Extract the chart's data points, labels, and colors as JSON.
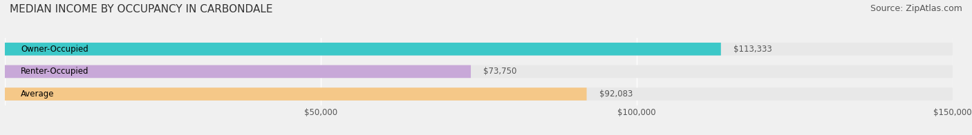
{
  "title": "MEDIAN INCOME BY OCCUPANCY IN CARBONDALE",
  "source": "Source: ZipAtlas.com",
  "categories": [
    "Owner-Occupied",
    "Renter-Occupied",
    "Average"
  ],
  "values": [
    113333,
    73750,
    92083
  ],
  "bar_colors": [
    "#3cc8c8",
    "#c8a8d8",
    "#f5c888"
  ],
  "bar_labels": [
    "$113,333",
    "$73,750",
    "$92,083"
  ],
  "xlim": [
    0,
    150000
  ],
  "xticks": [
    0,
    50000,
    100000,
    150000
  ],
  "xtick_labels": [
    "$50,000",
    "$100,000",
    "$150,000"
  ],
  "background_color": "#f0f0f0",
  "bar_bg_color": "#e8e8e8",
  "title_fontsize": 11,
  "source_fontsize": 9,
  "label_fontsize": 8.5,
  "bar_height": 0.55
}
